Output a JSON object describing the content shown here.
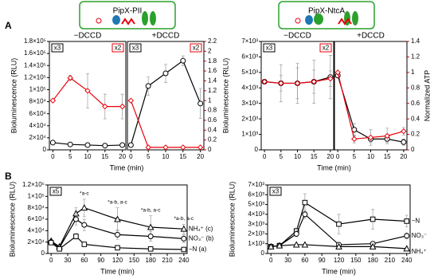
{
  "chart_data": [
    {
      "type": "line",
      "panel": "A",
      "header": "PipX-PII",
      "ylabel": "Bioluminescence (RLU)",
      "xlabel": "Time (min)",
      "ylim": [
        0,
        180000
      ],
      "yticks": [
        0,
        {
          "value": 20000,
          "label": "2×10⁴"
        },
        {
          "value": 40000,
          "label": "4×10⁴"
        },
        {
          "value": 60000,
          "label": "6×10⁴"
        },
        {
          "value": 80000,
          "label": "8×10⁴"
        },
        {
          "value": 100000,
          "label": "1×10⁵"
        },
        {
          "value": 120000,
          "label": "1.2×10⁵"
        },
        {
          "value": 140000,
          "label": "1.4×10⁵"
        },
        {
          "value": 160000,
          "label": "1.6×10⁵"
        },
        {
          "value": 180000,
          "label": "1.8×10⁵"
        }
      ],
      "y2lim": [
        0,
        2.2
      ],
      "y2ticks": [
        0,
        0.2,
        0.4,
        0.6,
        0.8,
        1,
        1.2,
        1.4,
        1.6,
        1.8,
        2,
        2.2
      ],
      "y2color": "#e8000b",
      "xlim": [
        -1,
        21
      ],
      "xticks": [
        0,
        5,
        10,
        15,
        20
      ],
      "subplots": [
        {
          "title": "−DCCD",
          "badges": [
            {
              "text": "x3",
              "color": "#000000"
            },
            {
              "text": "x2",
              "color": "#e8000b"
            }
          ],
          "x": [
            0,
            5,
            10,
            15,
            20
          ],
          "series": [
            {
              "color": "#000000",
              "marker": "circle",
              "values": [
                12000,
                9000,
                8000,
                7000,
                8000
              ]
            },
            {
              "color": "#e8000b",
              "marker": "diamond",
              "axis": "y2",
              "values": [
                1.0,
                1.46,
                1.2,
                0.88,
                0.88
              ],
              "errors": [
                0,
                0.05,
                0.35,
                0.25,
                0.25
              ]
            }
          ]
        },
        {
          "title": "+DCCD",
          "badges": [
            {
              "text": "x3",
              "color": "#000000"
            },
            {
              "text": "x2",
              "color": "#e8000b"
            }
          ],
          "x": [
            0,
            5,
            10,
            15,
            20
          ],
          "series": [
            {
              "color": "#000000",
              "marker": "circle",
              "values": [
                8000,
                106000,
                127000,
                148000,
                77000
              ],
              "errors": [
                0,
                15000,
                15000,
                8000,
                25000
              ]
            },
            {
              "color": "#e8000b",
              "marker": "diamond",
              "axis": "y2",
              "values": [
                1.0,
                0.05,
                0.05,
                0.05,
                0.05
              ]
            }
          ]
        }
      ]
    },
    {
      "type": "line",
      "header": "PipX-NtcA",
      "ylabel": "Bioluminescence (RLU)",
      "xlabel": "Time (min)",
      "y2label": "Normalized ATP",
      "ylim": [
        0,
        7000
      ],
      "yticks": [
        0,
        {
          "value": 1000,
          "label": "1×10³"
        },
        {
          "value": 2000,
          "label": "2×10³"
        },
        {
          "value": 3000,
          "label": "3×10³"
        },
        {
          "value": 4000,
          "label": "4×10³"
        },
        {
          "value": 5000,
          "label": "5×10³"
        },
        {
          "value": 6000,
          "label": "6×10³"
        },
        {
          "value": 7000,
          "label": "7×10³"
        }
      ],
      "y2lim": [
        0,
        1.4
      ],
      "y2ticks": [
        0,
        0.2,
        0.4,
        0.6,
        0.8,
        1,
        1.2,
        1.4
      ],
      "y2color": "#e8000b",
      "xlim": [
        -1,
        21
      ],
      "xticks": [
        0,
        5,
        10,
        15,
        20
      ],
      "subplots": [
        {
          "title": "−DCCD",
          "badges": [
            {
              "text": "x3",
              "color": "#000000"
            },
            {
              "text": "x2",
              "color": "#e8000b"
            }
          ],
          "x": [
            0,
            5,
            10,
            15,
            20
          ],
          "series": [
            {
              "color": "#000000",
              "marker": "circle",
              "values": [
                4400,
                4300,
                4300,
                4400,
                4700
              ],
              "errors": [
                0,
                1200,
                1300,
                1400,
                1400
              ]
            },
            {
              "color": "#e8000b",
              "marker": "diamond",
              "axis": "y2",
              "values": [
                0.88,
                0.86,
                0.86,
                0.88,
                0.92
              ],
              "errors": [
                0,
                0.1,
                0.2,
                0.15,
                0.1
              ]
            }
          ]
        },
        {
          "title": "+DCCD",
          "x": [
            0,
            5,
            10,
            15,
            20
          ],
          "series": [
            {
              "color": "#000000",
              "marker": "circle",
              "values": [
                4800,
                1300,
                700,
                700,
                500
              ],
              "errors": [
                0,
                400,
                200,
                200,
                200
              ]
            },
            {
              "color": "#e8000b",
              "marker": "diamond",
              "axis": "y2",
              "values": [
                1.0,
                0.14,
                0.16,
                0.18,
                0.24
              ],
              "errors": [
                0,
                0.05,
                0.1,
                0.1,
                0.05
              ]
            }
          ]
        }
      ]
    },
    {
      "type": "line",
      "panel": "B",
      "ylabel": "Bioluminescence (RLU)",
      "xlabel": "Time (min)",
      "ylim": [
        0,
        120000
      ],
      "yticks": [
        0,
        {
          "value": 20000,
          "label": "2×10⁴"
        },
        {
          "value": 40000,
          "label": "4×10⁴"
        },
        {
          "value": 60000,
          "label": "6×10⁴"
        },
        {
          "value": 80000,
          "label": "8×10⁴"
        },
        {
          "value": 100000,
          "label": "1×10⁵"
        },
        {
          "value": 120000,
          "label": "1.2×10⁵"
        }
      ],
      "xlim": [
        -6,
        246
      ],
      "xticks": [
        0,
        30,
        60,
        90,
        120,
        150,
        180,
        210,
        240
      ],
      "annotations": [
        "*a-c",
        "*a-b, a-c",
        "*a-b, a-c",
        "*a-b, a-c"
      ],
      "subplots": [
        {
          "badges": [
            {
              "text": "x5",
              "color": "#000000"
            }
          ],
          "x": [
            0,
            15,
            45,
            60,
            120,
            180,
            240
          ],
          "series": [
            {
              "name": "NH₄⁺ (c)",
              "color": "#000000",
              "marker": "triangle",
              "values": [
                22000,
                12000,
                70000,
                80000,
                60000,
                46000,
                43000
              ],
              "errors": [
                3000,
                2000,
                10000,
                15000,
                20000,
                20000,
                8000
              ]
            },
            {
              "name": "NO₃⁻ (b)",
              "color": "#000000",
              "marker": "circle",
              "values": [
                20000,
                10000,
                60000,
                50000,
                33000,
                30000,
                26000
              ],
              "errors": [
                2000,
                2000,
                10000,
                10000,
                8000,
                8000,
                7000
              ]
            },
            {
              "name": "−N (a)",
              "color": "#000000",
              "marker": "square",
              "values": [
                19000,
                8000,
                30000,
                16000,
                10000,
                8000,
                7000
              ],
              "errors": [
                2000,
                1000,
                5000,
                3000,
                2000,
                1000,
                1000
              ]
            }
          ]
        }
      ]
    },
    {
      "type": "line",
      "ylabel": "Bioluminescence (RLU)",
      "xlabel": "Time (min)",
      "ylim": [
        0,
        7000
      ],
      "yticks": [
        0,
        {
          "value": 1000,
          "label": "1×10³"
        },
        {
          "value": 2000,
          "label": "2×10³"
        },
        {
          "value": 3000,
          "label": "3×10³"
        },
        {
          "value": 4000,
          "label": "4×10³"
        },
        {
          "value": 5000,
          "label": "5×10³"
        },
        {
          "value": 6000,
          "label": "6×10³"
        },
        {
          "value": 7000,
          "label": "7×10³"
        }
      ],
      "xlim": [
        -6,
        246
      ],
      "xticks": [
        0,
        30,
        60,
        90,
        120,
        150,
        180,
        210,
        240
      ],
      "subplots": [
        {
          "badges": [
            {
              "text": "x3",
              "color": "#000000"
            }
          ],
          "x": [
            0,
            15,
            45,
            60,
            120,
            180,
            240
          ],
          "series": [
            {
              "name": "−N",
              "color": "#000000",
              "marker": "square",
              "values": [
                700,
                800,
                2300,
                5200,
                3000,
                3500,
                3300
              ],
              "errors": [
                100,
                100,
                300,
                900,
                1000,
                1000,
                600
              ]
            },
            {
              "name": "NO₃⁻",
              "color": "#000000",
              "marker": "circle",
              "values": [
                700,
                800,
                2000,
                4000,
                900,
                1000,
                1800
              ],
              "errors": [
                100,
                100,
                300,
                400,
                200,
                200,
                300
              ]
            },
            {
              "name": "NH₄⁺",
              "color": "#000000",
              "marker": "triangle",
              "values": [
                700,
                800,
                900,
                900,
                700,
                700,
                500
              ],
              "errors": [
                100,
                100,
                100,
                100,
                100,
                100,
                100
              ]
            }
          ]
        }
      ]
    }
  ]
}
